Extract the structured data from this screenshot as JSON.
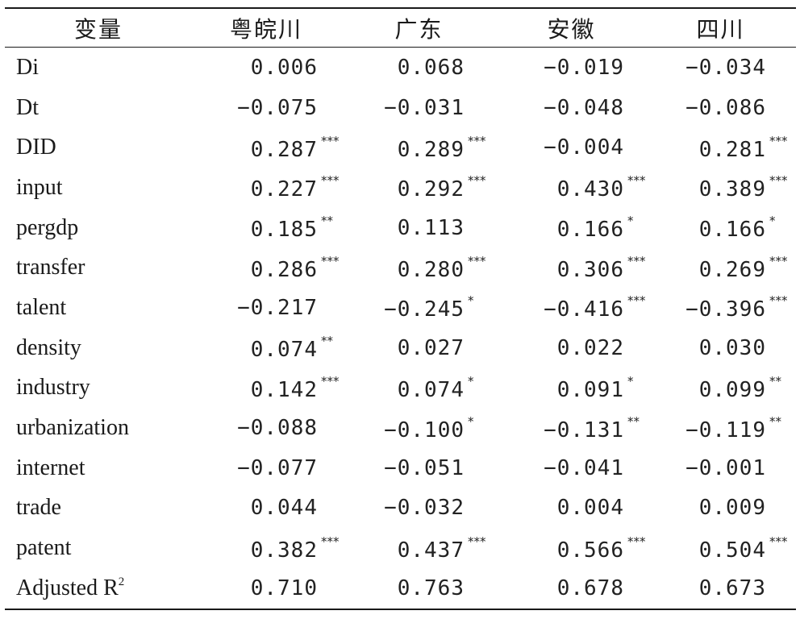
{
  "table": {
    "headers": [
      "变量",
      "粤皖川",
      "广东",
      "安徽",
      "四川"
    ],
    "rows": [
      {
        "variable": "Di",
        "values": [
          {
            "v": "0.006",
            "sig": ""
          },
          {
            "v": "0.068",
            "sig": ""
          },
          {
            "v": "−0.019",
            "sig": ""
          },
          {
            "v": "−0.034",
            "sig": ""
          }
        ]
      },
      {
        "variable": "Dt",
        "values": [
          {
            "v": "−0.075",
            "sig": ""
          },
          {
            "v": "−0.031",
            "sig": ""
          },
          {
            "v": "−0.048",
            "sig": ""
          },
          {
            "v": "−0.086",
            "sig": ""
          }
        ]
      },
      {
        "variable": "DID",
        "values": [
          {
            "v": "0.287",
            "sig": "***"
          },
          {
            "v": "0.289",
            "sig": "***"
          },
          {
            "v": "−0.004",
            "sig": ""
          },
          {
            "v": "0.281",
            "sig": "***"
          }
        ]
      },
      {
        "variable": "input",
        "values": [
          {
            "v": "0.227",
            "sig": "***"
          },
          {
            "v": "0.292",
            "sig": "***"
          },
          {
            "v": "0.430",
            "sig": "***"
          },
          {
            "v": "0.389",
            "sig": "***"
          }
        ]
      },
      {
        "variable": "pergdp",
        "values": [
          {
            "v": "0.185",
            "sig": "**"
          },
          {
            "v": "0.113",
            "sig": ""
          },
          {
            "v": "0.166",
            "sig": "*"
          },
          {
            "v": "0.166",
            "sig": "*"
          }
        ]
      },
      {
        "variable": "transfer",
        "values": [
          {
            "v": "0.286",
            "sig": "***"
          },
          {
            "v": "0.280",
            "sig": "***"
          },
          {
            "v": "0.306",
            "sig": "***"
          },
          {
            "v": "0.269",
            "sig": "***"
          }
        ]
      },
      {
        "variable": "talent",
        "values": [
          {
            "v": "−0.217",
            "sig": ""
          },
          {
            "v": "−0.245",
            "sig": "*"
          },
          {
            "v": "−0.416",
            "sig": "***"
          },
          {
            "v": "−0.396",
            "sig": "***"
          }
        ]
      },
      {
        "variable": "density",
        "values": [
          {
            "v": "0.074",
            "sig": "**"
          },
          {
            "v": "0.027",
            "sig": ""
          },
          {
            "v": "0.022",
            "sig": ""
          },
          {
            "v": "0.030",
            "sig": ""
          }
        ]
      },
      {
        "variable": "industry",
        "values": [
          {
            "v": "0.142",
            "sig": "***"
          },
          {
            "v": "0.074",
            "sig": "*"
          },
          {
            "v": "0.091",
            "sig": "*"
          },
          {
            "v": "0.099",
            "sig": "**"
          }
        ]
      },
      {
        "variable": "urbanization",
        "values": [
          {
            "v": "−0.088",
            "sig": ""
          },
          {
            "v": "−0.100",
            "sig": "*"
          },
          {
            "v": "−0.131",
            "sig": "**"
          },
          {
            "v": "−0.119",
            "sig": "**"
          }
        ]
      },
      {
        "variable": "internet",
        "values": [
          {
            "v": "−0.077",
            "sig": ""
          },
          {
            "v": "−0.051",
            "sig": ""
          },
          {
            "v": "−0.041",
            "sig": ""
          },
          {
            "v": "−0.001",
            "sig": ""
          }
        ]
      },
      {
        "variable": "trade",
        "values": [
          {
            "v": "0.044",
            "sig": ""
          },
          {
            "v": "−0.032",
            "sig": ""
          },
          {
            "v": "0.004",
            "sig": ""
          },
          {
            "v": "0.009",
            "sig": ""
          }
        ]
      },
      {
        "variable": "patent",
        "values": [
          {
            "v": "0.382",
            "sig": "***"
          },
          {
            "v": "0.437",
            "sig": "***"
          },
          {
            "v": "0.566",
            "sig": "***"
          },
          {
            "v": "0.504",
            "sig": "***"
          }
        ]
      },
      {
        "variable": "Adjusted R",
        "variable_sup": "2",
        "values": [
          {
            "v": "0.710",
            "sig": ""
          },
          {
            "v": "0.763",
            "sig": ""
          },
          {
            "v": "0.678",
            "sig": ""
          },
          {
            "v": "0.673",
            "sig": ""
          }
        ]
      }
    ]
  }
}
